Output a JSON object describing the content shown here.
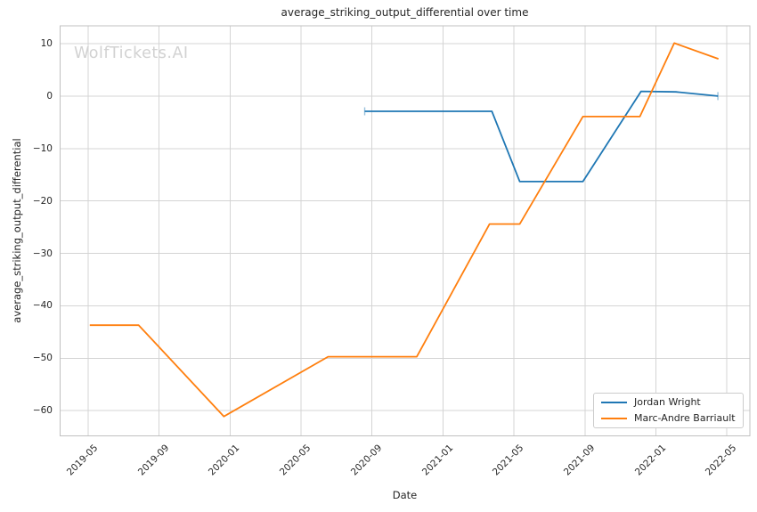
{
  "watermark": "WolfTickets.AI",
  "chart_data": {
    "type": "line",
    "title": "average_striking_output_differential over time",
    "xlabel": "Date",
    "ylabel": "average_striking_output_differential",
    "x_tick_labels": [
      "2019-05",
      "2019-09",
      "2020-01",
      "2020-05",
      "2020-09",
      "2021-01",
      "2021-05",
      "2021-09",
      "2022-01",
      "2022-05"
    ],
    "y_ticks": [
      10,
      0,
      -10,
      -20,
      -30,
      -40,
      -50,
      -60
    ],
    "y_tick_labels": [
      "10",
      "0",
      "−10",
      "−20",
      "−30",
      "−40",
      "−50",
      "−60"
    ],
    "xlim": [
      "2019-03-14",
      "2022-06-10"
    ],
    "ylim": [
      -64.8,
      13.4
    ],
    "grid": true,
    "grid_color": "#d4d4d4",
    "border_color": "#c0c0c0",
    "legend_position": "lower right",
    "series": [
      {
        "name": "Jordan Wright",
        "color": "#1f77b4",
        "end_caps": true,
        "points": [
          [
            "2020-08-19",
            -2.9
          ],
          [
            "2021-03-24",
            -2.9
          ],
          [
            "2021-05-11",
            -16.3
          ],
          [
            "2021-08-28",
            -16.3
          ],
          [
            "2021-12-06",
            0.9
          ],
          [
            "2022-02-05",
            0.8
          ],
          [
            "2022-04-16",
            0.0
          ]
        ]
      },
      {
        "name": "Marc-Andre Barriault",
        "color": "#ff7f0e",
        "end_caps": false,
        "points": [
          [
            "2019-05-04",
            -43.7
          ],
          [
            "2019-07-27",
            -43.7
          ],
          [
            "2019-12-21",
            -61.1
          ],
          [
            "2020-06-17",
            -49.7
          ],
          [
            "2020-11-17",
            -49.7
          ],
          [
            "2021-03-20",
            -24.4
          ],
          [
            "2021-05-11",
            -24.4
          ],
          [
            "2021-08-28",
            -3.9
          ],
          [
            "2021-12-04",
            -3.9
          ],
          [
            "2022-02-02",
            10.1
          ],
          [
            "2022-04-17",
            7.1
          ]
        ]
      }
    ]
  }
}
